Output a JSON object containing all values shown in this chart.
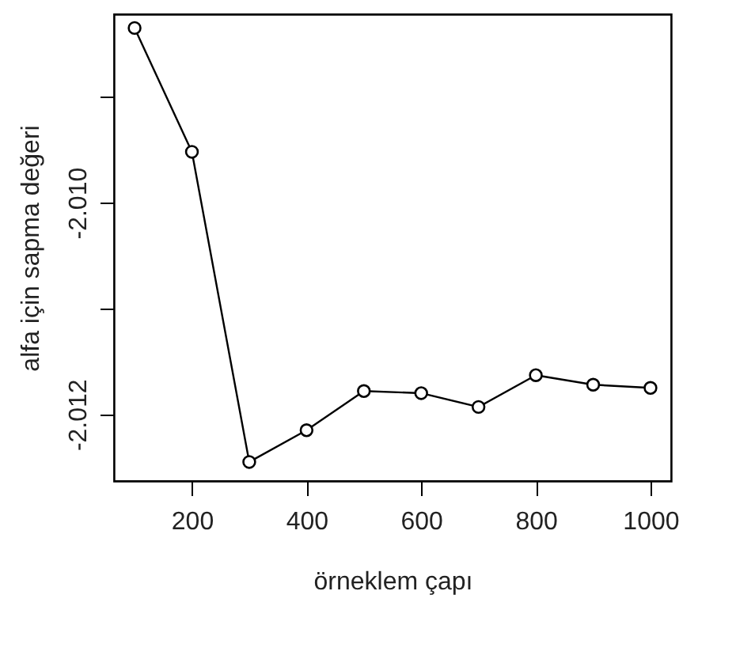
{
  "chart_data": {
    "type": "line",
    "xlabel": "örneklem çapı",
    "ylabel": "alfa için sapma değeri",
    "x": [
      100,
      200,
      300,
      400,
      500,
      600,
      700,
      800,
      900,
      1000
    ],
    "values": [
      -2.00835,
      -2.00952,
      -2.01245,
      -2.01215,
      -2.01178,
      -2.0118,
      -2.01193,
      -2.01163,
      -2.01172,
      -2.01175
    ],
    "color": "#000000",
    "xlim": [
      64,
      1036
    ],
    "xticks": [
      200,
      400,
      600,
      800,
      1000
    ],
    "ylim": [
      -2.01263,
      -2.00822
    ],
    "yticks": [
      {
        "value": -2.009,
        "label": null
      },
      {
        "value": -2.01,
        "label": "-2.010"
      },
      {
        "value": -2.011,
        "label": null
      },
      {
        "value": -2.012,
        "label": "-2.012"
      }
    ],
    "grid": false,
    "marker": "circle",
    "line_style": "solid"
  }
}
